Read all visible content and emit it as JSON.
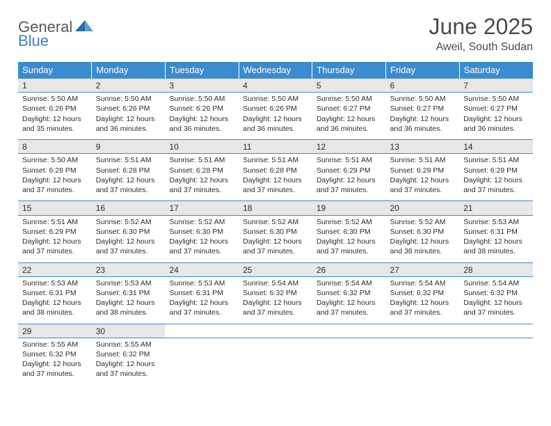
{
  "logo": {
    "text1": "General",
    "text2": "Blue"
  },
  "title": "June 2025",
  "subtitle": "Aweil, South Sudan",
  "colors": {
    "header_bg": "#3b8bd0",
    "daynum_bg": "#e7e7e7",
    "row_line": "#3b8bd0",
    "text": "#2d2d2d"
  },
  "weekdays": [
    "Sunday",
    "Monday",
    "Tuesday",
    "Wednesday",
    "Thursday",
    "Friday",
    "Saturday"
  ],
  "weeks": [
    [
      {
        "n": "1",
        "sr": "5:50 AM",
        "ss": "6:26 PM",
        "dl": "12 hours and 35 minutes."
      },
      {
        "n": "2",
        "sr": "5:50 AM",
        "ss": "6:26 PM",
        "dl": "12 hours and 36 minutes."
      },
      {
        "n": "3",
        "sr": "5:50 AM",
        "ss": "6:26 PM",
        "dl": "12 hours and 36 minutes."
      },
      {
        "n": "4",
        "sr": "5:50 AM",
        "ss": "6:26 PM",
        "dl": "12 hours and 36 minutes."
      },
      {
        "n": "5",
        "sr": "5:50 AM",
        "ss": "6:27 PM",
        "dl": "12 hours and 36 minutes."
      },
      {
        "n": "6",
        "sr": "5:50 AM",
        "ss": "6:27 PM",
        "dl": "12 hours and 36 minutes."
      },
      {
        "n": "7",
        "sr": "5:50 AM",
        "ss": "6:27 PM",
        "dl": "12 hours and 36 minutes."
      }
    ],
    [
      {
        "n": "8",
        "sr": "5:50 AM",
        "ss": "6:28 PM",
        "dl": "12 hours and 37 minutes."
      },
      {
        "n": "9",
        "sr": "5:51 AM",
        "ss": "6:28 PM",
        "dl": "12 hours and 37 minutes."
      },
      {
        "n": "10",
        "sr": "5:51 AM",
        "ss": "6:28 PM",
        "dl": "12 hours and 37 minutes."
      },
      {
        "n": "11",
        "sr": "5:51 AM",
        "ss": "6:28 PM",
        "dl": "12 hours and 37 minutes."
      },
      {
        "n": "12",
        "sr": "5:51 AM",
        "ss": "6:29 PM",
        "dl": "12 hours and 37 minutes."
      },
      {
        "n": "13",
        "sr": "5:51 AM",
        "ss": "6:29 PM",
        "dl": "12 hours and 37 minutes."
      },
      {
        "n": "14",
        "sr": "5:51 AM",
        "ss": "6:29 PM",
        "dl": "12 hours and 37 minutes."
      }
    ],
    [
      {
        "n": "15",
        "sr": "5:51 AM",
        "ss": "6:29 PM",
        "dl": "12 hours and 37 minutes."
      },
      {
        "n": "16",
        "sr": "5:52 AM",
        "ss": "6:30 PM",
        "dl": "12 hours and 37 minutes."
      },
      {
        "n": "17",
        "sr": "5:52 AM",
        "ss": "6:30 PM",
        "dl": "12 hours and 37 minutes."
      },
      {
        "n": "18",
        "sr": "5:52 AM",
        "ss": "6:30 PM",
        "dl": "12 hours and 37 minutes."
      },
      {
        "n": "19",
        "sr": "5:52 AM",
        "ss": "6:30 PM",
        "dl": "12 hours and 37 minutes."
      },
      {
        "n": "20",
        "sr": "5:52 AM",
        "ss": "6:30 PM",
        "dl": "12 hours and 38 minutes."
      },
      {
        "n": "21",
        "sr": "5:53 AM",
        "ss": "6:31 PM",
        "dl": "12 hours and 38 minutes."
      }
    ],
    [
      {
        "n": "22",
        "sr": "5:53 AM",
        "ss": "6:31 PM",
        "dl": "12 hours and 38 minutes."
      },
      {
        "n": "23",
        "sr": "5:53 AM",
        "ss": "6:31 PM",
        "dl": "12 hours and 38 minutes."
      },
      {
        "n": "24",
        "sr": "5:53 AM",
        "ss": "6:31 PM",
        "dl": "12 hours and 37 minutes."
      },
      {
        "n": "25",
        "sr": "5:54 AM",
        "ss": "6:32 PM",
        "dl": "12 hours and 37 minutes."
      },
      {
        "n": "26",
        "sr": "5:54 AM",
        "ss": "6:32 PM",
        "dl": "12 hours and 37 minutes."
      },
      {
        "n": "27",
        "sr": "5:54 AM",
        "ss": "6:32 PM",
        "dl": "12 hours and 37 minutes."
      },
      {
        "n": "28",
        "sr": "5:54 AM",
        "ss": "6:32 PM",
        "dl": "12 hours and 37 minutes."
      }
    ],
    [
      {
        "n": "29",
        "sr": "5:55 AM",
        "ss": "6:32 PM",
        "dl": "12 hours and 37 minutes."
      },
      {
        "n": "30",
        "sr": "5:55 AM",
        "ss": "6:32 PM",
        "dl": "12 hours and 37 minutes."
      },
      null,
      null,
      null,
      null,
      null
    ]
  ],
  "labels": {
    "sunrise": "Sunrise:",
    "sunset": "Sunset:",
    "daylight": "Daylight:"
  }
}
